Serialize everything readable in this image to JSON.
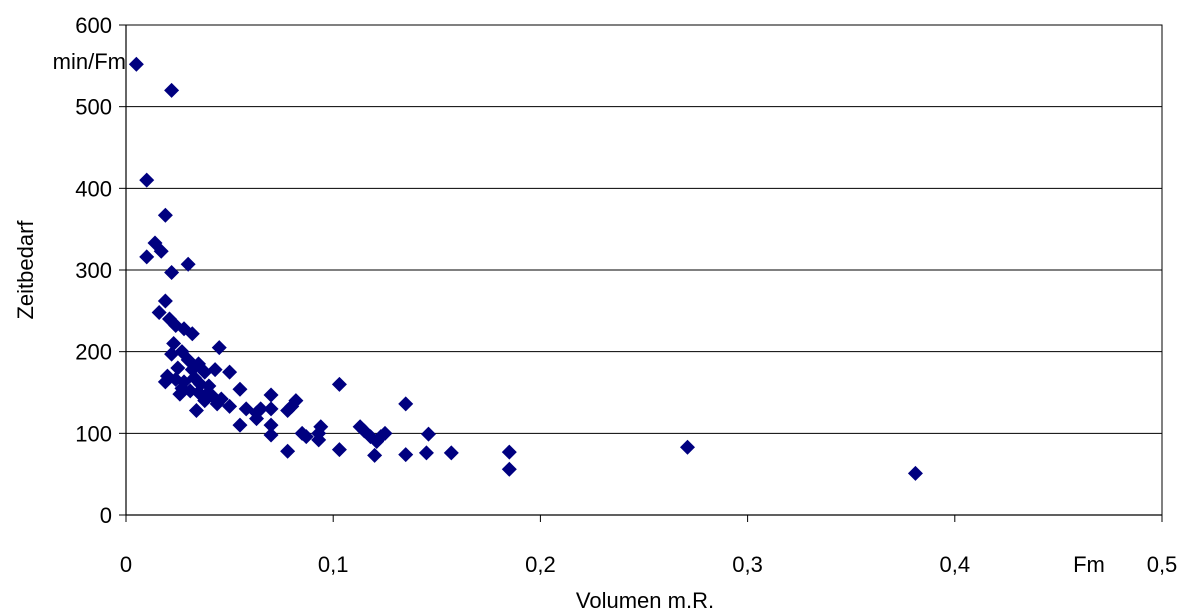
{
  "chart_data": {
    "type": "scatter",
    "title": "",
    "xlabel": "Volumen m.R.",
    "ylabel": "Zeitbedarf",
    "x_unit": "Fm",
    "y_unit": "min/Fm",
    "xlim": [
      0,
      0.5
    ],
    "ylim": [
      0,
      600
    ],
    "x_ticks": [
      "0",
      "0,1",
      "0,2",
      "0,3",
      "0,4",
      "0,5"
    ],
    "y_ticks": [
      "0",
      "100",
      "200",
      "300",
      "400",
      "500",
      "600"
    ],
    "grid": "horizontal",
    "legend": "none",
    "marker": "diamond",
    "colors": {
      "marker": "#000080",
      "grid": "#000000",
      "background": "#ffffff"
    },
    "points": [
      [
        0.005,
        552
      ],
      [
        0.022,
        520
      ],
      [
        0.01,
        410
      ],
      [
        0.019,
        367
      ],
      [
        0.01,
        316
      ],
      [
        0.014,
        333
      ],
      [
        0.017,
        323
      ],
      [
        0.022,
        297
      ],
      [
        0.03,
        307
      ],
      [
        0.019,
        262
      ],
      [
        0.016,
        248
      ],
      [
        0.021,
        240
      ],
      [
        0.024,
        232
      ],
      [
        0.028,
        228
      ],
      [
        0.032,
        222
      ],
      [
        0.023,
        210
      ],
      [
        0.027,
        200
      ],
      [
        0.022,
        197
      ],
      [
        0.03,
        190
      ],
      [
        0.035,
        185
      ],
      [
        0.045,
        205
      ],
      [
        0.025,
        180
      ],
      [
        0.032,
        178
      ],
      [
        0.038,
        175
      ],
      [
        0.043,
        178
      ],
      [
        0.05,
        175
      ],
      [
        0.02,
        170
      ],
      [
        0.019,
        163
      ],
      [
        0.024,
        166
      ],
      [
        0.028,
        163
      ],
      [
        0.033,
        168
      ],
      [
        0.036,
        160
      ],
      [
        0.04,
        158
      ],
      [
        0.027,
        155
      ],
      [
        0.031,
        152
      ],
      [
        0.035,
        150
      ],
      [
        0.039,
        148
      ],
      [
        0.042,
        145
      ],
      [
        0.046,
        142
      ],
      [
        0.026,
        148
      ],
      [
        0.038,
        140
      ],
      [
        0.044,
        136
      ],
      [
        0.05,
        133
      ],
      [
        0.034,
        128
      ],
      [
        0.055,
        154
      ],
      [
        0.058,
        130
      ],
      [
        0.063,
        125
      ],
      [
        0.065,
        130
      ],
      [
        0.055,
        110
      ],
      [
        0.063,
        118
      ],
      [
        0.07,
        147
      ],
      [
        0.07,
        130
      ],
      [
        0.07,
        110
      ],
      [
        0.07,
        98
      ],
      [
        0.078,
        128
      ],
      [
        0.082,
        140
      ],
      [
        0.08,
        133
      ],
      [
        0.085,
        100
      ],
      [
        0.087,
        96
      ],
      [
        0.094,
        108
      ],
      [
        0.093,
        100
      ],
      [
        0.093,
        92
      ],
      [
        0.078,
        78
      ],
      [
        0.103,
        160
      ],
      [
        0.103,
        80
      ],
      [
        0.113,
        108
      ],
      [
        0.115,
        103
      ],
      [
        0.118,
        96
      ],
      [
        0.121,
        90
      ],
      [
        0.123,
        96
      ],
      [
        0.125,
        100
      ],
      [
        0.12,
        73
      ],
      [
        0.135,
        136
      ],
      [
        0.135,
        74
      ],
      [
        0.145,
        76
      ],
      [
        0.146,
        99
      ],
      [
        0.157,
        76
      ],
      [
        0.185,
        77
      ],
      [
        0.185,
        56
      ],
      [
        0.271,
        83
      ],
      [
        0.381,
        51
      ]
    ]
  }
}
